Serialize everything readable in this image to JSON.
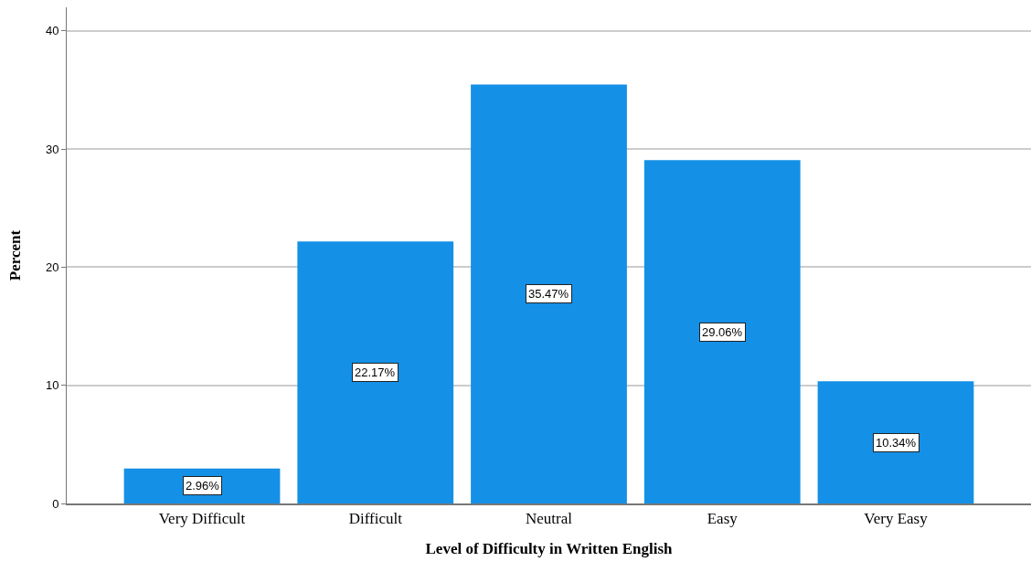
{
  "chart_data": {
    "type": "bar",
    "xlabel": "Level of Difficulty in Written English",
    "ylabel": "Percent",
    "categories": [
      "Very Difficult",
      "Difficult",
      "Neutral",
      "Easy",
      "Very Easy"
    ],
    "values": [
      2.96,
      22.17,
      35.47,
      29.06,
      10.34
    ],
    "value_labels": [
      "2.96%",
      "22.17%",
      "35.47%",
      "29.06%",
      "10.34%"
    ],
    "color": "#1490e6",
    "ylim": [
      0,
      42
    ],
    "yticks": [
      0,
      10,
      20,
      30,
      40
    ],
    "grid": "y"
  }
}
